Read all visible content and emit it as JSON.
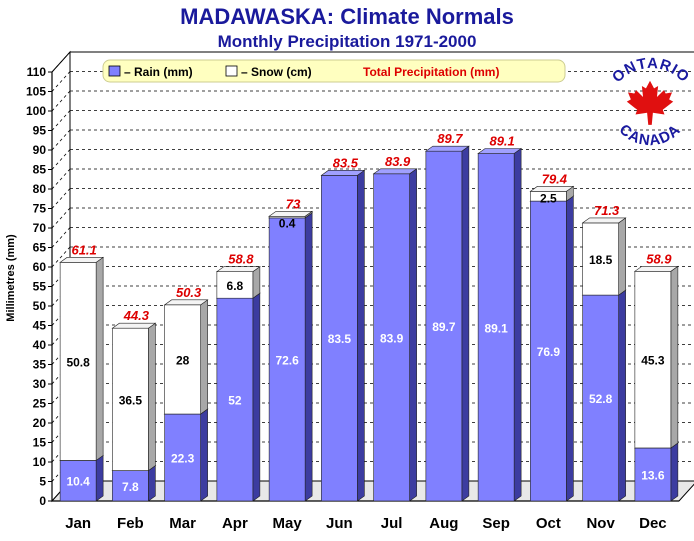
{
  "chart_data": {
    "type": "bar",
    "stacked": true,
    "title": "MADAWASKA: Climate Normals",
    "subtitle": "Monthly Precipitation 1971-2000",
    "ylabel": "Millimetres (mm)",
    "xlabel": "",
    "ylim": [
      0,
      110
    ],
    "ytick_step": 5,
    "grid": true,
    "legend_position": "top",
    "categories": [
      "Jan",
      "Feb",
      "Mar",
      "Apr",
      "May",
      "Jun",
      "Jul",
      "Aug",
      "Sep",
      "Oct",
      "Nov",
      "Dec"
    ],
    "series": [
      {
        "name": "– Rain (mm)",
        "color": "#8080ff",
        "values": [
          10.4,
          7.8,
          22.3,
          52,
          72.6,
          83.5,
          83.9,
          89.7,
          89.1,
          76.9,
          52.8,
          13.6
        ],
        "labels": [
          "10.4",
          "7.8",
          "22.3",
          "52",
          "72.6",
          "83.5",
          "83.9",
          "89.7",
          "89.1",
          "76.9",
          "52.8",
          "13.6"
        ]
      },
      {
        "name": "– Snow (cm)",
        "color": "#ffffff",
        "values": [
          50.8,
          36.5,
          28,
          6.8,
          0.4,
          0,
          0,
          0,
          0,
          2.5,
          18.5,
          45.3
        ],
        "labels": [
          "50.8",
          "36.5",
          "28",
          "6.8",
          "0.4",
          "",
          "",
          "",
          "",
          "2.5",
          "18.5",
          "45.3"
        ]
      }
    ],
    "totals": {
      "name": "Total Precipitation (mm)",
      "color": "#dd0000",
      "values": [
        61.1,
        44.3,
        50.3,
        58.8,
        73,
        83.5,
        83.9,
        89.7,
        89.1,
        79.4,
        71.3,
        58.9
      ],
      "labels": [
        "61.1",
        "44.3",
        "50.3",
        "58.8",
        "73",
        "83.5",
        "83.9",
        "89.7",
        "89.1",
        "79.4",
        "71.3",
        "58.9"
      ]
    },
    "yticks": [
      "0",
      "5",
      "10",
      "15",
      "20",
      "25",
      "30",
      "35",
      "40",
      "45",
      "50",
      "55",
      "60",
      "65",
      "70",
      "75",
      "80",
      "85",
      "90",
      "95",
      "100",
      "105",
      "110"
    ]
  },
  "logo": {
    "text_top": "ONTARIO",
    "text_bottom": "CANADA",
    "icon": "maple-leaf-icon",
    "color": "#1a1aa0",
    "leaf_color": "#e01010"
  }
}
